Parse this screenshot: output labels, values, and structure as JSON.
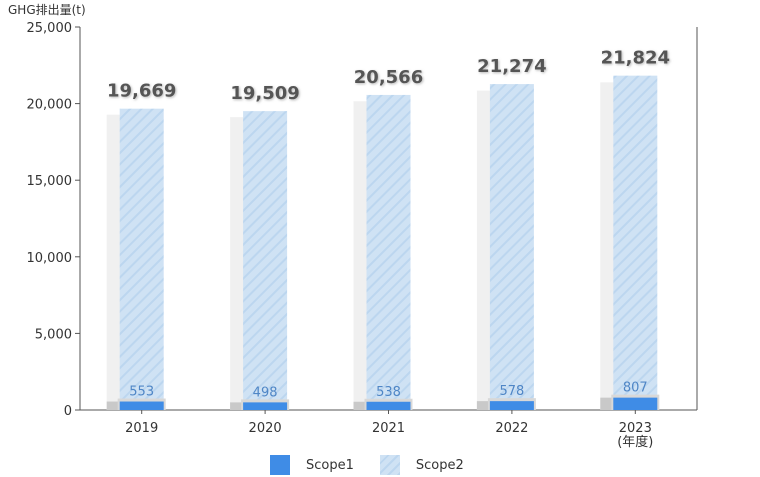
{
  "chart_data": {
    "type": "bar",
    "stacked": true,
    "ylabel": "GHG排出量(t)",
    "xlabel": "",
    "ylim": [
      0,
      25000
    ],
    "yticks": [
      0,
      5000,
      10000,
      15000,
      20000,
      25000
    ],
    "ytick_labels": [
      "0",
      "5,000",
      "10,000",
      "15,000",
      "20,000",
      "25,000"
    ],
    "categories": [
      "2019",
      "2020",
      "2021",
      "2022",
      "2023"
    ],
    "category_sublabels": [
      "",
      "",
      "",
      "",
      "(年度)"
    ],
    "series": [
      {
        "name": "Scope1",
        "values": [
          553,
          498,
          538,
          578,
          807
        ],
        "labels": [
          "553",
          "498",
          "538",
          "578",
          "807"
        ],
        "color": "#3f8ce6"
      },
      {
        "name": "Scope2",
        "values": [
          19116,
          19011,
          20028,
          20696,
          21017
        ],
        "color": "#cfe2f4"
      }
    ],
    "totals": [
      19669,
      19509,
      20566,
      21274,
      21824
    ],
    "total_labels": [
      "19,669",
      "19,509",
      "20,566",
      "21,274",
      "21,824"
    ],
    "grid": false,
    "legend": "bottom"
  }
}
